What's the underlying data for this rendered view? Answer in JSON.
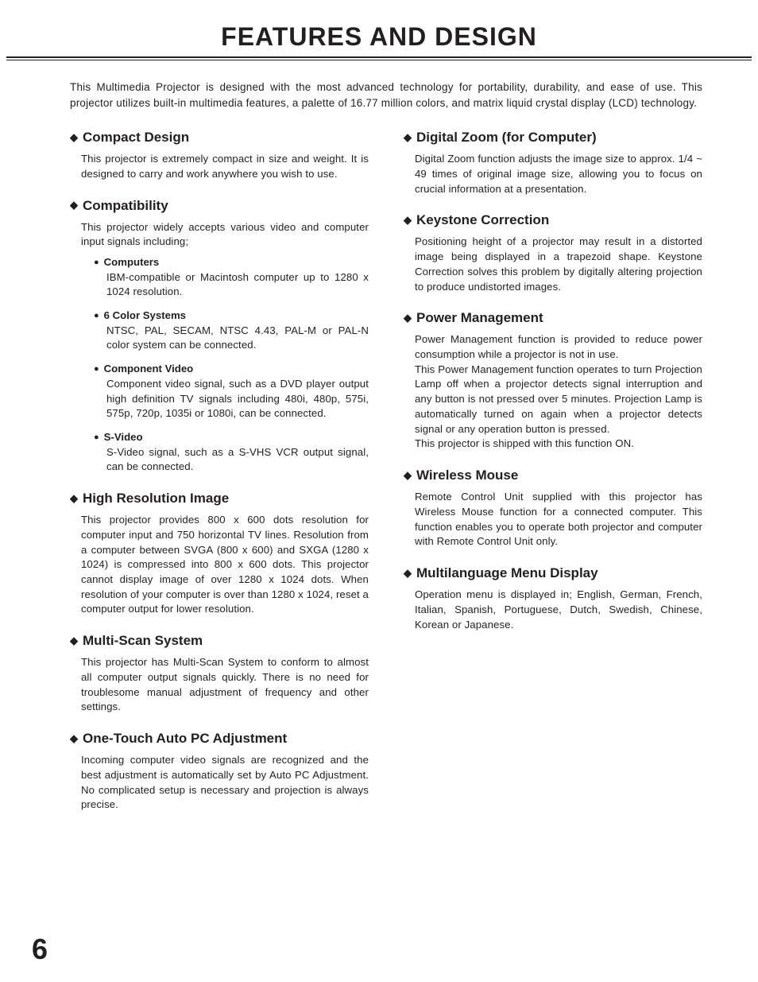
{
  "pageTitle": "FEATURES AND DESIGN",
  "intro": "This Multimedia Projector is designed with the most advanced technology for portability, durability, and ease of use.  This projector utilizes built-in multimedia features, a palette of 16.77 million colors, and matrix liquid crystal display (LCD) technology.",
  "pageNumber": "6",
  "left": [
    {
      "title": "Compact Design",
      "body": "This projector is extremely compact in size and weight.  It is designed to carry and work anywhere you wish to use."
    },
    {
      "title": "Compatibility",
      "body": "This projector widely accepts various video and computer input signals including;",
      "subs": [
        {
          "t": "Computers",
          "b": "IBM-compatible or Macintosh computer up to 1280 x 1024 resolution."
        },
        {
          "t": "6 Color Systems",
          "b": "NTSC, PAL, SECAM, NTSC 4.43, PAL-M or PAL-N color system can be connected."
        },
        {
          "t": "Component Video",
          "b": "Component video signal, such as a DVD player output high definition TV signals including 480i, 480p, 575i, 575p, 720p, 1035i or 1080i, can be connected."
        },
        {
          "t": "S-Video",
          "b": "S-Video signal, such as a S-VHS VCR output signal, can be connected."
        }
      ]
    },
    {
      "title": "High Resolution Image",
      "body": "This projector provides 800 x 600 dots resolution for computer input and 750 horizontal TV lines.  Resolution from a computer between SVGA (800 x 600) and SXGA (1280 x 1024) is compressed into 800 x 600 dots.  This projector cannot display image of over 1280 x 1024 dots.  When resolution of your computer is over than 1280 x 1024, reset a computer output for lower resolution."
    },
    {
      "title": "Multi-Scan System",
      "body": "This projector has Multi-Scan System to conform to almost all computer output signals quickly.  There is no need for troublesome manual adjustment of frequency and other settings."
    },
    {
      "title": "One-Touch Auto PC Adjustment",
      "body": "Incoming computer video signals are recognized and the best adjustment is automatically set by Auto PC Adjustment.  No complicated setup is necessary and projection is always precise."
    }
  ],
  "right": [
    {
      "title": "Digital Zoom (for Computer)",
      "body": "Digital Zoom function adjusts the image size to approx. 1/4 ~ 49 times of original image size, allowing you to focus on crucial information at a presentation."
    },
    {
      "title": "Keystone Correction",
      "body": "Positioning height of a projector may result in a distorted image being displayed in a trapezoid shape.  Keystone Correction solves this problem by digitally altering projection to produce undistorted images."
    },
    {
      "title": "Power Management",
      "body": "Power Management function is provided to reduce power consumption while a projector is not in use.\nThis Power Management function operates to turn Projection Lamp off when a projector detects signal interruption and any button is not pressed over 5 minutes.  Projection Lamp is automatically turned on again when a projector detects signal or any operation button is pressed.\nThis projector is shipped with this function ON."
    },
    {
      "title": "Wireless Mouse",
      "body": "Remote Control Unit supplied with this projector has Wireless Mouse function for a connected computer.  This function enables you to operate both projector and computer with Remote Control Unit only."
    },
    {
      "title": "Multilanguage Menu Display",
      "body": "Operation menu is displayed in; English, German, French, Italian, Spanish, Portuguese, Dutch, Swedish, Chinese, Korean or Japanese."
    }
  ]
}
